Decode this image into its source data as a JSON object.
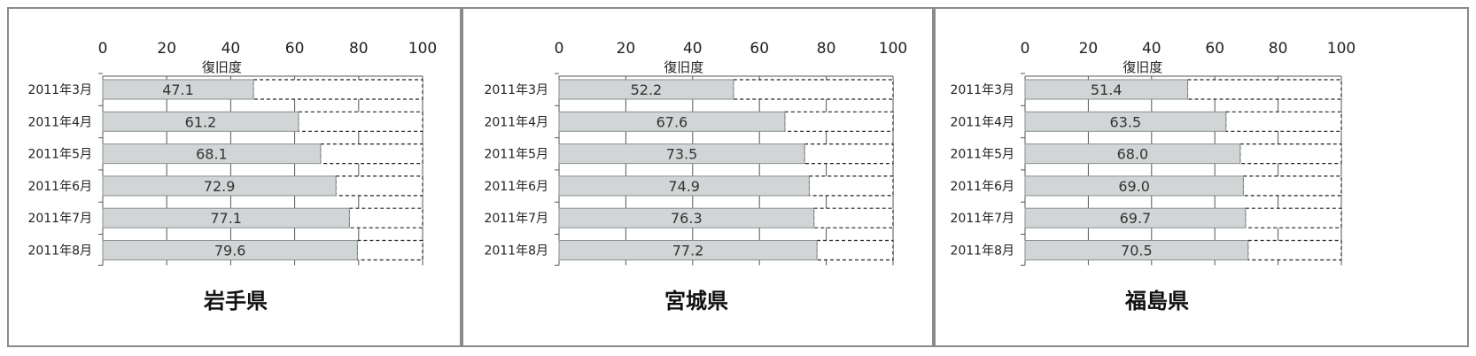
{
  "chart_data": [
    {
      "type": "bar",
      "orientation": "horizontal",
      "stacked_remainder_to": 100,
      "title": "岩手県",
      "xlabel": "復旧度",
      "xlim": [
        0,
        100
      ],
      "ticks": [
        "0",
        "20",
        "40",
        "60",
        "80",
        "100"
      ],
      "categories": [
        "2011年3月",
        "2011年4月",
        "2011年5月",
        "2011年6月",
        "2011年7月",
        "2011年8月"
      ],
      "values": [
        47.1,
        61.2,
        68.1,
        72.9,
        77.1,
        79.6
      ],
      "value_labels": [
        "47.1",
        "61.2",
        "68.1",
        "72.9",
        "77.1",
        "79.6"
      ],
      "grid": true
    },
    {
      "type": "bar",
      "orientation": "horizontal",
      "stacked_remainder_to": 100,
      "title": "宮城県",
      "xlabel": "復旧度",
      "xlim": [
        0,
        100
      ],
      "ticks": [
        "0",
        "20",
        "40",
        "60",
        "80",
        "100"
      ],
      "categories": [
        "2011年3月",
        "2011年4月",
        "2011年5月",
        "2011年6月",
        "2011年7月",
        "2011年8月"
      ],
      "values": [
        52.2,
        67.6,
        73.5,
        74.9,
        76.3,
        77.2
      ],
      "value_labels": [
        "52.2",
        "67.6",
        "73.5",
        "74.9",
        "76.3",
        "77.2"
      ],
      "grid": true
    },
    {
      "type": "bar",
      "orientation": "horizontal",
      "stacked_remainder_to": 100,
      "title": "福島県",
      "xlabel": "復旧度",
      "xlim": [
        0,
        100
      ],
      "ticks": [
        "0",
        "20",
        "40",
        "60",
        "80",
        "100"
      ],
      "categories": [
        "2011年3月",
        "2011年4月",
        "2011年5月",
        "2011年6月",
        "2011年7月",
        "2011年8月"
      ],
      "values": [
        51.4,
        63.5,
        68.0,
        69.0,
        69.7,
        70.5
      ],
      "value_labels": [
        "51.4",
        "63.5",
        "68.0",
        "69.0",
        "69.7",
        "70.5"
      ],
      "grid": true
    }
  ],
  "colors": {
    "bar_fill": "#d1d5d6",
    "bar_stroke": "#8a8f91",
    "remainder_stroke": "#222222",
    "grid": "#555555",
    "frame": "#8a8a8a"
  }
}
